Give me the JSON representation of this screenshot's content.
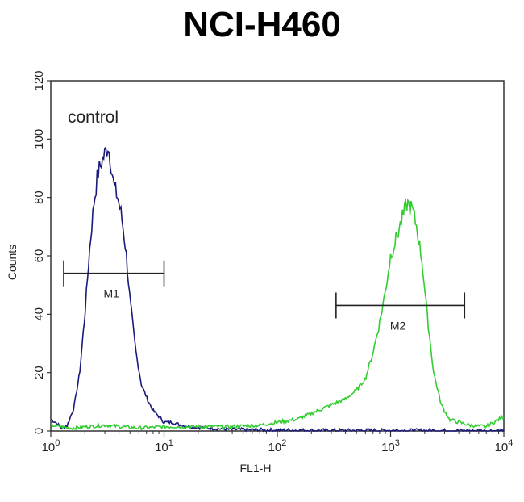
{
  "chart_data": {
    "type": "line",
    "title": "NCI-H460",
    "xlabel": "FL1-H",
    "ylabel": "Counts",
    "xscale": "log",
    "xlim": [
      1,
      10000
    ],
    "ylim": [
      0,
      120
    ],
    "y_ticks": [
      "0",
      "20",
      "40",
      "60",
      "80",
      "100",
      "120"
    ],
    "x_ticks": [
      {
        "base": "10",
        "exp": "0",
        "value": 1
      },
      {
        "base": "10",
        "exp": "1",
        "value": 10
      },
      {
        "base": "10",
        "exp": "2",
        "value": 100
      },
      {
        "base": "10",
        "exp": "3",
        "value": 1000
      },
      {
        "base": "10",
        "exp": "4",
        "value": 10000
      }
    ],
    "annotation": "control",
    "series": [
      {
        "color": "#1a1a7a",
        "points": [
          [
            1,
            4
          ],
          [
            1.1,
            3
          ],
          [
            1.25,
            1
          ],
          [
            1.4,
            2
          ],
          [
            1.6,
            8
          ],
          [
            1.8,
            20
          ],
          [
            2.0,
            40
          ],
          [
            2.2,
            62
          ],
          [
            2.4,
            78
          ],
          [
            2.6,
            88
          ],
          [
            2.8,
            92
          ],
          [
            3.0,
            95
          ],
          [
            3.2,
            98
          ],
          [
            3.4,
            92
          ],
          [
            3.6,
            84
          ],
          [
            3.9,
            80
          ],
          [
            4.2,
            74
          ],
          [
            4.6,
            62
          ],
          [
            5.0,
            45
          ],
          [
            5.6,
            28
          ],
          [
            6.3,
            16
          ],
          [
            7.1,
            11
          ],
          [
            8,
            7
          ],
          [
            9,
            5
          ],
          [
            10,
            3
          ],
          [
            12,
            3
          ],
          [
            14,
            2
          ],
          [
            17,
            1.5
          ],
          [
            25,
            1
          ],
          [
            40,
            0.5
          ],
          [
            100,
            0.3
          ],
          [
            300,
            0.2
          ],
          [
            1000,
            0.2
          ],
          [
            10000,
            0.1
          ]
        ]
      },
      {
        "color": "#33cc33",
        "points": [
          [
            1,
            2
          ],
          [
            1.5,
            1
          ],
          [
            3,
            2
          ],
          [
            6,
            1
          ],
          [
            10,
            1.5
          ],
          [
            20,
            1.5
          ],
          [
            40,
            1.5
          ],
          [
            70,
            2
          ],
          [
            100,
            3
          ],
          [
            150,
            4
          ],
          [
            200,
            6
          ],
          [
            300,
            9
          ],
          [
            400,
            11
          ],
          [
            500,
            14
          ],
          [
            600,
            18
          ],
          [
            700,
            27
          ],
          [
            800,
            37
          ],
          [
            900,
            48
          ],
          [
            1000,
            60
          ],
          [
            1100,
            65
          ],
          [
            1250,
            72
          ],
          [
            1400,
            78
          ],
          [
            1550,
            76
          ],
          [
            1700,
            70
          ],
          [
            1900,
            58
          ],
          [
            2100,
            40
          ],
          [
            2400,
            20
          ],
          [
            2800,
            9
          ],
          [
            3300,
            4
          ],
          [
            4000,
            3
          ],
          [
            5000,
            2
          ],
          [
            7000,
            1.5
          ],
          [
            10000,
            5
          ]
        ]
      }
    ],
    "markers": [
      {
        "label": "M1",
        "x_start": 1.3,
        "x_end": 10,
        "y": 54
      },
      {
        "label": "M2",
        "x_start": 330,
        "x_end": 4500,
        "y": 43
      }
    ]
  }
}
